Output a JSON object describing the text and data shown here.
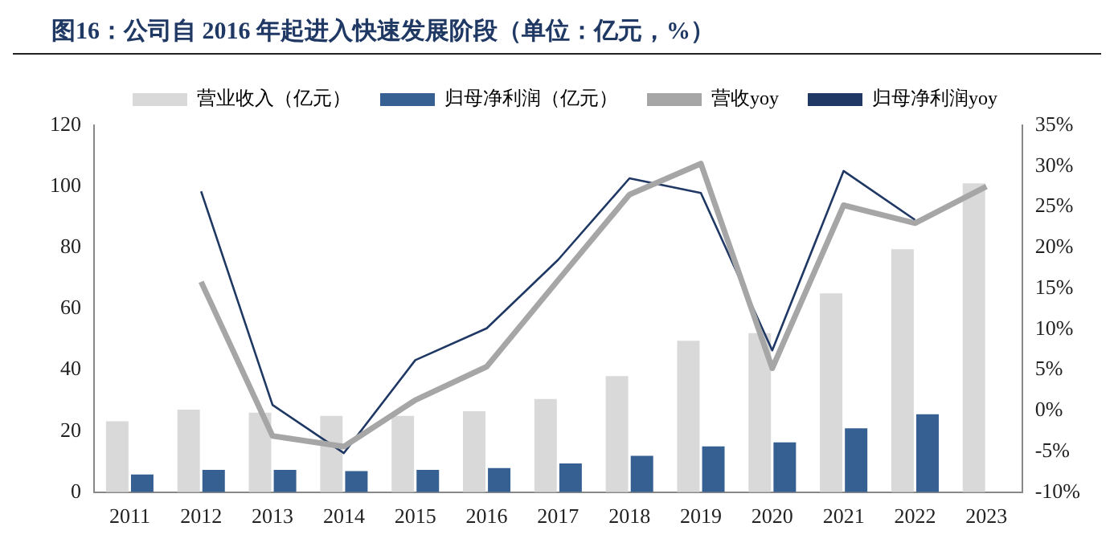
{
  "chart_data": {
    "type": "bar",
    "title": "图16：公司自 2016 年起进入快速发展阶段（单位：亿元，%）",
    "categories": [
      "2011",
      "2012",
      "2013",
      "2014",
      "2015",
      "2016",
      "2017",
      "2018",
      "2019",
      "2020",
      "2021",
      "2022",
      "2023"
    ],
    "series": [
      {
        "name": "营业收入（亿元）",
        "color": "#d9d9d9",
        "values": [
          23.2,
          27,
          26,
          25,
          25,
          26.5,
          30.5,
          38,
          49.5,
          52,
          65,
          79.5,
          101
        ]
      },
      {
        "name": "归母净利润（亿元）",
        "color": "#376092",
        "values": [
          5.8,
          7.3,
          7.3,
          6.9,
          7.3,
          7.9,
          9.4,
          11.9,
          15,
          16.3,
          20.9,
          25.5,
          null
        ]
      },
      {
        "name": "营收yoy",
        "type": "line",
        "axis": "y2",
        "color": "#a6a6a6",
        "values": [
          null,
          15.8,
          -3.1,
          -4.4,
          1.3,
          5.4,
          16,
          26.5,
          30.3,
          5.2,
          25.2,
          23,
          27.5
        ]
      },
      {
        "name": "归母净利润yoy",
        "type": "line",
        "axis": "y2",
        "color": "#1f3864",
        "values": [
          null,
          26.9,
          0.7,
          -5.2,
          6.2,
          10.1,
          18.5,
          28.5,
          26.7,
          7.4,
          29.4,
          23.4,
          null
        ]
      }
    ],
    "ylim": [
      0,
      120
    ],
    "yticks": [
      0,
      20,
      40,
      60,
      80,
      100,
      120
    ],
    "y2lim": [
      -10,
      35
    ],
    "y2ticks": [
      {
        "value": -10,
        "label": "-10%"
      },
      {
        "value": -5,
        "label": "-5%"
      },
      {
        "value": 0,
        "label": "0%"
      },
      {
        "value": 5,
        "label": "5%"
      },
      {
        "value": 10,
        "label": "10%"
      },
      {
        "value": 15,
        "label": "15%"
      },
      {
        "value": 20,
        "label": "20%"
      },
      {
        "value": 25,
        "label": "25%"
      },
      {
        "value": 30,
        "label": "30%"
      },
      {
        "value": 35,
        "label": "35%"
      }
    ],
    "grid": false,
    "legend": "top",
    "marker": "none",
    "line_style": "solid"
  }
}
